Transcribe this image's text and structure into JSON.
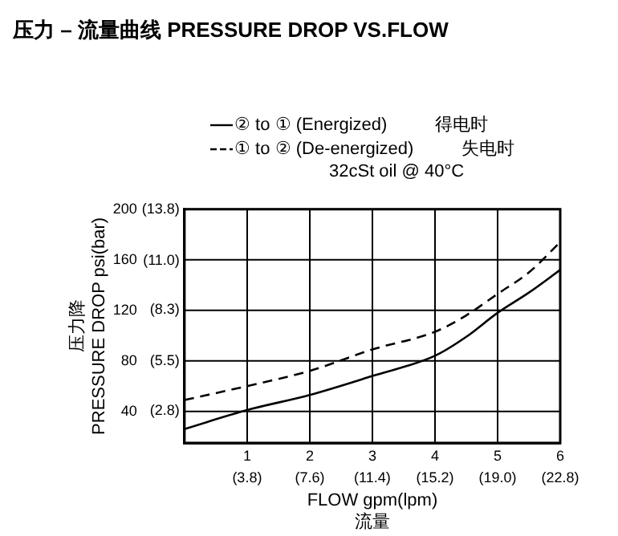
{
  "chart_data": {
    "type": "line",
    "title": "压力 – 流量曲线 PRESSURE DROP VS.FLOW",
    "xlabel": "FLOW gpm(lpm)\n流量",
    "ylabel": "压力降\nPRESSURE DROP psi(bar)",
    "x": [
      0,
      1,
      2,
      3,
      4,
      4.5,
      5,
      5.5,
      6
    ],
    "series": [
      {
        "name": "② to ① (Energized)",
        "color": "#000000",
        "line_style": "solid",
        "values": [
          26,
          41,
          53,
          68,
          84,
          99,
          118,
          134,
          152
        ]
      },
      {
        "name": "① to ② (De-energized)",
        "color": "#000000",
        "line_style": "dashed",
        "values": [
          49,
          60,
          72,
          89,
          103,
          116,
          133,
          150,
          174
        ]
      }
    ],
    "annotations": [
      "得电时",
      "失电时",
      "32cSt oil @ 40°C"
    ],
    "xlim": [
      0,
      6
    ],
    "xticks": [
      1,
      2,
      3,
      4,
      5,
      6
    ],
    "x2lim": [
      0,
      22.8
    ],
    "x2ticks": [
      {
        "value": 3.8,
        "label": "(3.8)"
      },
      {
        "value": 7.6,
        "label": "(7.6)"
      },
      {
        "value": 11.4,
        "label": "(11.4)"
      },
      {
        "value": 15.2,
        "label": "(15.2)"
      },
      {
        "value": 19.0,
        "label": "(19.0)"
      },
      {
        "value": 22.8,
        "label": "(22.8)"
      }
    ],
    "ylim": [
      15,
      200
    ],
    "yticks": [
      40,
      80,
      120,
      160,
      200
    ],
    "y2lim": [
      1.03,
      13.8
    ],
    "y2ticks": [
      {
        "value": 2.8,
        "label": "(2.8)"
      },
      {
        "value": 5.5,
        "label": "(5.5)"
      },
      {
        "value": 8.3,
        "label": "(8.3)"
      },
      {
        "value": 11.0,
        "label": "(11.0)"
      },
      {
        "value": 13.8,
        "label": "(13.8)"
      }
    ],
    "grid": true,
    "legend": "top",
    "marker": "none"
  }
}
